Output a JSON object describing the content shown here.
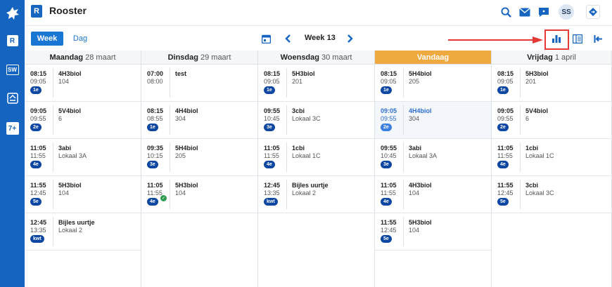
{
  "app": {
    "logo_letter": "R",
    "title": "Rooster"
  },
  "sidebar": {
    "items": [
      {
        "name": "home-icon",
        "label": ""
      },
      {
        "name": "rooster-icon",
        "label": "R"
      },
      {
        "name": "sw-icon",
        "label": "SW"
      },
      {
        "name": "inbox-icon",
        "label": ""
      },
      {
        "name": "seven-plus-icon",
        "label": "7+"
      }
    ]
  },
  "header": {
    "avatar_initials": "SS"
  },
  "toolbar": {
    "week_label": "Week",
    "day_label": "Dag",
    "current_week": "Week 13"
  },
  "colors": {
    "primary": "#1565c0",
    "accent": "#1976d2",
    "today": "#eeaa40",
    "badge": "#0d47a1",
    "annotation": "#e53935"
  },
  "days": [
    {
      "name": "Maandag",
      "date": "28 maart",
      "today": false
    },
    {
      "name": "Dinsdag",
      "date": "29 maart",
      "today": false
    },
    {
      "name": "Woensdag",
      "date": "30 maart",
      "today": false
    },
    {
      "name": "Vandaag",
      "date": "",
      "today": true
    },
    {
      "name": "Vrijdag",
      "date": "1 april",
      "today": false
    }
  ],
  "lessons": [
    [
      {
        "start": "08:15",
        "end": "09:05",
        "hour": "1e",
        "subject": "4H3biol",
        "room": "104"
      },
      {
        "start": "09:05",
        "end": "09:55",
        "hour": "2e",
        "subject": "5V4biol",
        "room": "6"
      },
      {
        "start": "11:05",
        "end": "11:55",
        "hour": "4e",
        "subject": "3abi",
        "room": "Lokaal 3A"
      },
      {
        "start": "11:55",
        "end": "12:45",
        "hour": "5e",
        "subject": "5H3biol",
        "room": "104"
      },
      {
        "start": "12:45",
        "end": "13:35",
        "hour": "kwt",
        "subject": "Bijles uurtje",
        "room": "Lokaal 2"
      }
    ],
    [
      {
        "start": "07:00",
        "end": "08:00",
        "hour": "",
        "subject": "test",
        "room": ""
      },
      {
        "start": "08:15",
        "end": "08:55",
        "hour": "1e",
        "subject": "4H4biol",
        "room": "304"
      },
      {
        "start": "09:35",
        "end": "10:15",
        "hour": "3e",
        "subject": "5H4biol",
        "room": "205"
      },
      {
        "start": "11:05",
        "end": "11:55",
        "hour": "4e",
        "subject": "5H3biol",
        "room": "104",
        "checked": true
      }
    ],
    [
      {
        "start": "08:15",
        "end": "09:05",
        "hour": "1e",
        "subject": "5H3biol",
        "room": "201"
      },
      {
        "start": "09:55",
        "end": "10:45",
        "hour": "3e",
        "subject": "3cbi",
        "room": "Lokaal 3C"
      },
      {
        "start": "11:05",
        "end": "11:55",
        "hour": "4e",
        "subject": "1cbi",
        "room": "Lokaal 1C"
      },
      {
        "start": "12:45",
        "end": "13:35",
        "hour": "kwt",
        "subject": "Bijles uurtje",
        "room": "Lokaal 2"
      }
    ],
    [
      {
        "start": "08:15",
        "end": "09:05",
        "hour": "1e",
        "subject": "5H4biol",
        "room": "205"
      },
      {
        "start": "09:05",
        "end": "09:55",
        "hour": "2e",
        "subject": "4H4biol",
        "room": "304",
        "current": true
      },
      {
        "start": "09:55",
        "end": "10:45",
        "hour": "3e",
        "subject": "3abi",
        "room": "Lokaal 3A"
      },
      {
        "start": "11:05",
        "end": "11:55",
        "hour": "4e",
        "subject": "4H3biol",
        "room": "104"
      },
      {
        "start": "11:55",
        "end": "12:45",
        "hour": "5e",
        "subject": "5H3biol",
        "room": "104"
      }
    ],
    [
      {
        "start": "08:15",
        "end": "09:05",
        "hour": "1e",
        "subject": "5H3biol",
        "room": "201"
      },
      {
        "start": "09:05",
        "end": "09:55",
        "hour": "2e",
        "subject": "5V4biol",
        "room": "6"
      },
      {
        "start": "11:05",
        "end": "11:55",
        "hour": "4e",
        "subject": "1cbi",
        "room": "Lokaal 1C"
      },
      {
        "start": "11:55",
        "end": "12:45",
        "hour": "5e",
        "subject": "3cbi",
        "room": "Lokaal 3C"
      }
    ]
  ]
}
